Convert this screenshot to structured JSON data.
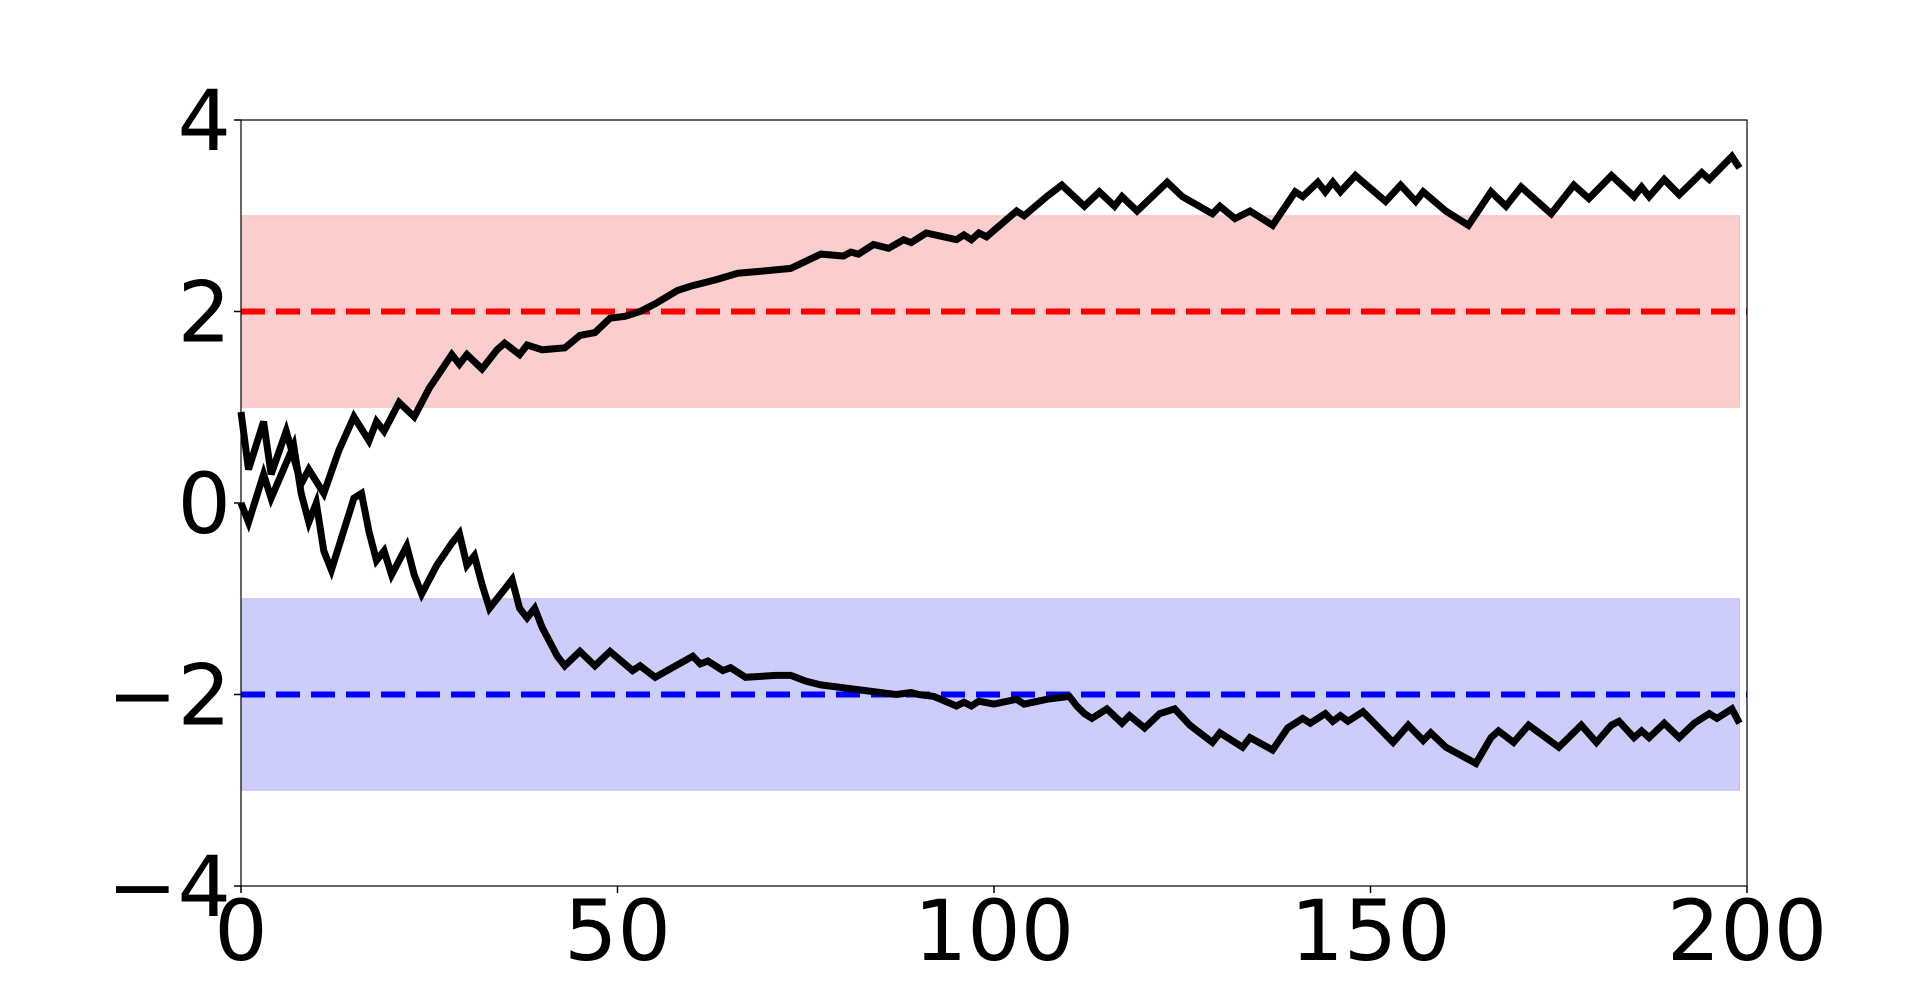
{
  "chart_data": {
    "type": "line",
    "title": "",
    "xlabel": "",
    "ylabel": "",
    "xlim": [
      0,
      200
    ],
    "ylim": [
      -4,
      4
    ],
    "grid": false,
    "legend": "none",
    "x_ticks": [
      0,
      50,
      100,
      150,
      200
    ],
    "y_ticks": [
      -4,
      -2,
      0,
      2,
      4
    ],
    "x_tick_labels": [
      "0",
      "50",
      "100",
      "150",
      "200"
    ],
    "y_tick_labels": [
      "−4",
      "−2",
      "0",
      "2",
      "4"
    ],
    "bands": [
      {
        "y_from": 1,
        "y_to": 3,
        "x_from": 0,
        "x_to": 199,
        "color": "#f8a8a8"
      },
      {
        "y_from": -3,
        "y_to": -1,
        "x_from": 0,
        "x_to": 199,
        "color": "#a8a8f8"
      }
    ],
    "reference_lines": [
      {
        "y": 2,
        "color": "#ff0000",
        "style": "dashed"
      },
      {
        "y": -2,
        "color": "#0000ff",
        "style": "dashed"
      }
    ],
    "series": [
      {
        "color": "#000000",
        "points": [
          [
            0,
            0.95
          ],
          [
            1,
            0.35
          ],
          [
            3,
            0.85
          ],
          [
            4,
            0.3
          ],
          [
            6,
            0.75
          ],
          [
            8,
            0.2
          ],
          [
            9,
            0.35
          ],
          [
            11,
            0.1
          ],
          [
            13,
            0.55
          ],
          [
            15,
            0.9
          ],
          [
            17,
            0.65
          ],
          [
            18,
            0.85
          ],
          [
            19,
            0.75
          ],
          [
            21,
            1.05
          ],
          [
            23,
            0.9
          ],
          [
            25,
            1.2
          ],
          [
            28,
            1.55
          ],
          [
            29,
            1.45
          ],
          [
            30,
            1.55
          ],
          [
            32,
            1.4
          ],
          [
            34,
            1.6
          ],
          [
            35,
            1.67
          ],
          [
            37,
            1.55
          ],
          [
            38,
            1.65
          ],
          [
            40,
            1.6
          ],
          [
            43,
            1.62
          ],
          [
            45,
            1.75
          ],
          [
            47,
            1.78
          ],
          [
            49,
            1.93
          ],
          [
            51,
            1.95
          ],
          [
            53,
            2.0
          ],
          [
            55,
            2.08
          ],
          [
            58,
            2.22
          ],
          [
            60,
            2.27
          ],
          [
            63,
            2.33
          ],
          [
            66,
            2.4
          ],
          [
            69,
            2.42
          ],
          [
            73,
            2.45
          ],
          [
            77,
            2.6
          ],
          [
            80,
            2.58
          ],
          [
            81,
            2.62
          ],
          [
            82,
            2.6
          ],
          [
            84,
            2.7
          ],
          [
            86,
            2.66
          ],
          [
            88,
            2.75
          ],
          [
            89,
            2.72
          ],
          [
            91,
            2.82
          ],
          [
            95,
            2.75
          ],
          [
            96,
            2.8
          ],
          [
            97,
            2.75
          ],
          [
            98,
            2.82
          ],
          [
            99,
            2.78
          ],
          [
            103,
            3.05
          ],
          [
            104,
            3.0
          ],
          [
            107,
            3.2
          ],
          [
            109,
            3.32
          ],
          [
            112,
            3.1
          ],
          [
            114,
            3.25
          ],
          [
            116,
            3.1
          ],
          [
            117,
            3.2
          ],
          [
            119,
            3.05
          ],
          [
            123,
            3.35
          ],
          [
            125,
            3.2
          ],
          [
            129,
            3.02
          ],
          [
            130,
            3.1
          ],
          [
            132,
            2.97
          ],
          [
            134,
            3.05
          ],
          [
            137,
            2.9
          ],
          [
            140,
            3.25
          ],
          [
            141,
            3.2
          ],
          [
            143,
            3.35
          ],
          [
            144,
            3.25
          ],
          [
            145,
            3.35
          ],
          [
            146,
            3.25
          ],
          [
            148,
            3.42
          ],
          [
            152,
            3.15
          ],
          [
            154,
            3.32
          ],
          [
            156,
            3.15
          ],
          [
            157,
            3.25
          ],
          [
            160,
            3.05
          ],
          [
            163,
            2.9
          ],
          [
            166,
            3.25
          ],
          [
            168,
            3.1
          ],
          [
            170,
            3.3
          ],
          [
            174,
            3.02
          ],
          [
            177,
            3.32
          ],
          [
            179,
            3.18
          ],
          [
            182,
            3.42
          ],
          [
            185,
            3.2
          ],
          [
            186,
            3.3
          ],
          [
            187,
            3.2
          ],
          [
            189,
            3.38
          ],
          [
            191,
            3.22
          ],
          [
            194,
            3.45
          ],
          [
            195,
            3.38
          ],
          [
            198,
            3.62
          ],
          [
            199,
            3.5
          ]
        ]
      },
      {
        "color": "#000000",
        "points": [
          [
            0,
            0.0
          ],
          [
            1,
            -0.2
          ],
          [
            3,
            0.3
          ],
          [
            4,
            0.05
          ],
          [
            7,
            0.6
          ],
          [
            8,
            0.1
          ],
          [
            9,
            -0.2
          ],
          [
            10,
            0.0
          ],
          [
            11,
            -0.5
          ],
          [
            12,
            -0.7
          ],
          [
            14,
            -0.2
          ],
          [
            15,
            0.05
          ],
          [
            16,
            0.1
          ],
          [
            17,
            -0.3
          ],
          [
            18,
            -0.6
          ],
          [
            19,
            -0.5
          ],
          [
            20,
            -0.75
          ],
          [
            22,
            -0.45
          ],
          [
            23,
            -0.75
          ],
          [
            24,
            -0.95
          ],
          [
            26,
            -0.65
          ],
          [
            28,
            -0.42
          ],
          [
            29,
            -0.32
          ],
          [
            30,
            -0.65
          ],
          [
            31,
            -0.55
          ],
          [
            32,
            -0.85
          ],
          [
            33,
            -1.1
          ],
          [
            35,
            -0.9
          ],
          [
            36,
            -0.8
          ],
          [
            37,
            -1.1
          ],
          [
            38,
            -1.2
          ],
          [
            39,
            -1.1
          ],
          [
            40,
            -1.3
          ],
          [
            42,
            -1.6
          ],
          [
            43,
            -1.7
          ],
          [
            45,
            -1.55
          ],
          [
            47,
            -1.7
          ],
          [
            49,
            -1.55
          ],
          [
            52,
            -1.75
          ],
          [
            53,
            -1.7
          ],
          [
            55,
            -1.82
          ],
          [
            60,
            -1.6
          ],
          [
            61,
            -1.68
          ],
          [
            62,
            -1.65
          ],
          [
            64,
            -1.75
          ],
          [
            65,
            -1.72
          ],
          [
            67,
            -1.82
          ],
          [
            71,
            -1.8
          ],
          [
            73,
            -1.8
          ],
          [
            75,
            -1.86
          ],
          [
            77,
            -1.9
          ],
          [
            85,
            -1.98
          ],
          [
            87,
            -2.0
          ],
          [
            89,
            -1.98
          ],
          [
            90,
            -2.0
          ],
          [
            92,
            -2.02
          ],
          [
            95,
            -2.12
          ],
          [
            96,
            -2.08
          ],
          [
            97,
            -2.12
          ],
          [
            98,
            -2.07
          ],
          [
            100,
            -2.1
          ],
          [
            103,
            -2.05
          ],
          [
            104,
            -2.1
          ],
          [
            107,
            -2.05
          ],
          [
            110,
            -2.02
          ],
          [
            111,
            -2.12
          ],
          [
            112,
            -2.2
          ],
          [
            113,
            -2.25
          ],
          [
            115,
            -2.15
          ],
          [
            117,
            -2.3
          ],
          [
            118,
            -2.22
          ],
          [
            120,
            -2.35
          ],
          [
            122,
            -2.2
          ],
          [
            124,
            -2.15
          ],
          [
            126,
            -2.32
          ],
          [
            129,
            -2.5
          ],
          [
            130,
            -2.4
          ],
          [
            133,
            -2.55
          ],
          [
            134,
            -2.45
          ],
          [
            137,
            -2.58
          ],
          [
            139,
            -2.35
          ],
          [
            141,
            -2.25
          ],
          [
            142,
            -2.3
          ],
          [
            144,
            -2.2
          ],
          [
            145,
            -2.28
          ],
          [
            146,
            -2.22
          ],
          [
            147,
            -2.28
          ],
          [
            149,
            -2.18
          ],
          [
            153,
            -2.5
          ],
          [
            155,
            -2.32
          ],
          [
            157,
            -2.48
          ],
          [
            158,
            -2.4
          ],
          [
            160,
            -2.55
          ],
          [
            164,
            -2.72
          ],
          [
            166,
            -2.45
          ],
          [
            167,
            -2.38
          ],
          [
            169,
            -2.5
          ],
          [
            171,
            -2.32
          ],
          [
            175,
            -2.55
          ],
          [
            178,
            -2.32
          ],
          [
            180,
            -2.5
          ],
          [
            182,
            -2.32
          ],
          [
            183,
            -2.28
          ],
          [
            185,
            -2.45
          ],
          [
            186,
            -2.38
          ],
          [
            187,
            -2.45
          ],
          [
            189,
            -2.3
          ],
          [
            191,
            -2.45
          ],
          [
            193,
            -2.3
          ],
          [
            195,
            -2.2
          ],
          [
            196,
            -2.25
          ],
          [
            198,
            -2.15
          ],
          [
            199,
            -2.3
          ]
        ]
      }
    ]
  }
}
